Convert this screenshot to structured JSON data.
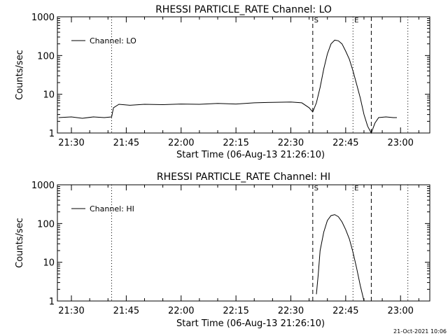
{
  "footer": {
    "timestamp": "21-Oct-2021 10:06"
  },
  "chart_data": [
    {
      "type": "line",
      "title": "RHESSI PARTICLE_RATE Channel: LO",
      "xlabel": "Start Time (06-Aug-13 21:26:10)",
      "ylabel": "Counts/sec",
      "yscale": "log",
      "ylim": [
        1,
        1000
      ],
      "xlim": [
        "21:26:10",
        "23:08"
      ],
      "x_ticks": [
        "21:30",
        "21:45",
        "22:00",
        "22:15",
        "22:30",
        "22:45",
        "23:00"
      ],
      "y_ticks": [
        "1",
        "10",
        "100",
        "1000"
      ],
      "legend": {
        "position": "top-left",
        "entries": [
          "Channel: LO"
        ]
      },
      "markers": [
        {
          "label": "",
          "style": "dotted",
          "time": "21:41"
        },
        {
          "label": "S",
          "style": "dashed",
          "time": "22:36"
        },
        {
          "label": "E",
          "style": "dotted",
          "time": "22:47"
        },
        {
          "label": "",
          "style": "dashed",
          "time": "22:52"
        },
        {
          "label": "",
          "style": "dotted",
          "time": "23:02"
        }
      ],
      "series": [
        {
          "name": "Channel: LO",
          "x": [
            "21:26:30",
            "21:30",
            "21:33",
            "21:36",
            "21:39",
            "21:41",
            "21:41:30",
            "21:43",
            "21:46",
            "21:50",
            "21:55",
            "22:00",
            "22:05",
            "22:10",
            "22:15",
            "22:20",
            "22:25",
            "22:30",
            "22:33",
            "22:35",
            "22:36",
            "22:37",
            "22:38",
            "22:39",
            "22:40",
            "22:41",
            "22:42",
            "22:43",
            "22:44",
            "22:45",
            "22:46",
            "22:47",
            "22:48",
            "22:49",
            "22:50",
            "22:51",
            "22:52",
            "22:53",
            "22:54",
            "22:56",
            "22:58",
            "22:59"
          ],
          "values": [
            2.5,
            2.6,
            2.4,
            2.6,
            2.5,
            2.6,
            4.5,
            5.5,
            5.2,
            5.5,
            5.4,
            5.6,
            5.5,
            5.8,
            5.6,
            6.0,
            6.2,
            6.3,
            6.0,
            4.5,
            3.5,
            6,
            15,
            45,
            110,
            200,
            250,
            240,
            200,
            130,
            80,
            40,
            18,
            8,
            3,
            1.5,
            1.0,
            1.8,
            2.5,
            2.6,
            2.5,
            2.5
          ]
        }
      ]
    },
    {
      "type": "line",
      "title": "RHESSI PARTICLE_RATE Channel: HI",
      "xlabel": "Start Time (06-Aug-13 21:26:10)",
      "ylabel": "Counts/sec",
      "yscale": "log",
      "ylim": [
        1,
        1000
      ],
      "xlim": [
        "21:26:10",
        "23:08"
      ],
      "x_ticks": [
        "21:30",
        "21:45",
        "22:00",
        "22:15",
        "22:30",
        "22:45",
        "23:00"
      ],
      "y_ticks": [
        "1",
        "10",
        "100",
        "1000"
      ],
      "legend": {
        "position": "top-left",
        "entries": [
          "Channel: HI"
        ]
      },
      "markers": [
        {
          "label": "",
          "style": "dotted",
          "time": "21:41"
        },
        {
          "label": "S",
          "style": "dashed",
          "time": "22:36"
        },
        {
          "label": "E",
          "style": "dotted",
          "time": "22:47"
        },
        {
          "label": "",
          "style": "dashed",
          "time": "22:52"
        },
        {
          "label": "",
          "style": "dotted",
          "time": "23:02"
        }
      ],
      "series": [
        {
          "name": "Channel: HI",
          "x": [
            "22:37",
            "22:37:30",
            "22:38",
            "22:39",
            "22:40",
            "22:41",
            "22:42",
            "22:43",
            "22:44",
            "22:45",
            "22:46",
            "22:47",
            "22:48",
            "22:49",
            "22:50"
          ],
          "values": [
            1.5,
            5,
            20,
            60,
            120,
            160,
            170,
            150,
            110,
            70,
            40,
            18,
            7,
            2.5,
            1.0
          ]
        }
      ]
    }
  ]
}
